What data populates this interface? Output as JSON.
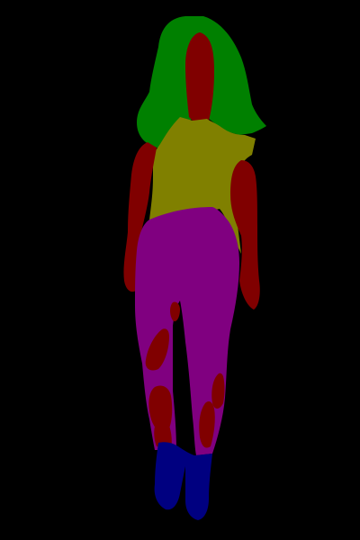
{
  "image": {
    "background_color": "#000000",
    "segments": [
      {
        "name": "hair",
        "color": "#008000"
      },
      {
        "name": "skin",
        "color": "#800000"
      },
      {
        "name": "top",
        "color": "#808000"
      },
      {
        "name": "pants",
        "color": "#800080"
      },
      {
        "name": "shoes",
        "color": "#000080"
      }
    ]
  }
}
